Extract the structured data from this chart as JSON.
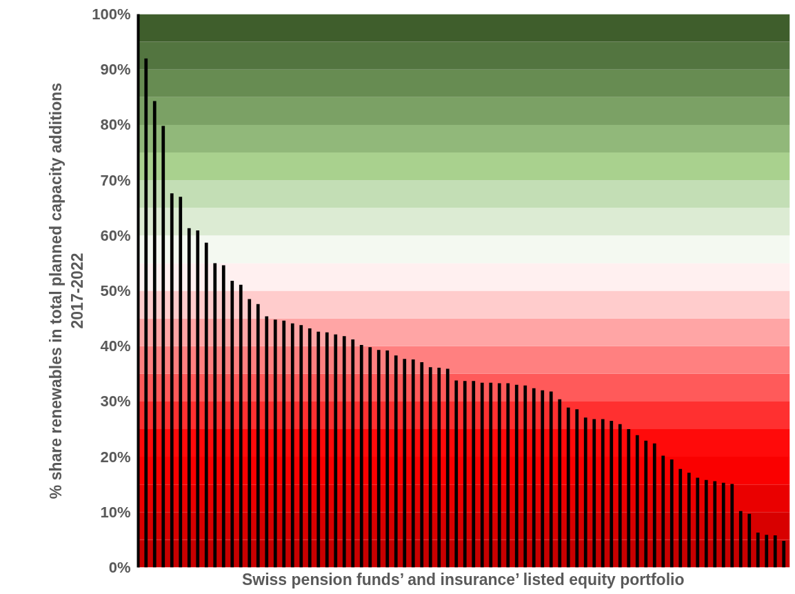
{
  "chart_data": {
    "type": "bar",
    "xlabel": "Swiss pension funds’ and insurance’ listed equity portfolio",
    "ylabel": "% share renewables in total planned capacity additions\n2017-2022",
    "categories": [
      null,
      null,
      null,
      null,
      null,
      null,
      null,
      null,
      null,
      null,
      null,
      null,
      null,
      null,
      null,
      null,
      null,
      null,
      null,
      null,
      null,
      null,
      null,
      null,
      null,
      null,
      null,
      null,
      null,
      null,
      null,
      null,
      null,
      null,
      null,
      null,
      null,
      null,
      null,
      null,
      null,
      null,
      null,
      null,
      null,
      null,
      null,
      null,
      null,
      null,
      null,
      null,
      null,
      null,
      null,
      null,
      null,
      null,
      null,
      null,
      null,
      null,
      null,
      null,
      null,
      null,
      null,
      null,
      null,
      null,
      null,
      null,
      null,
      null,
      null
    ],
    "values": [
      92.0,
      84.3,
      79.8,
      67.6,
      67.0,
      61.3,
      60.9,
      58.7,
      55.0,
      54.6,
      51.8,
      51.1,
      48.5,
      47.6,
      45.4,
      44.8,
      44.6,
      44.1,
      43.8,
      43.2,
      42.6,
      42.5,
      42.1,
      41.8,
      41.2,
      40.2,
      39.8,
      39.3,
      39.2,
      38.3,
      37.7,
      37.6,
      37.1,
      36.2,
      36.1,
      35.9,
      33.8,
      33.7,
      33.7,
      33.4,
      33.4,
      33.3,
      33.3,
      33.0,
      32.9,
      32.4,
      32.0,
      31.8,
      30.4,
      28.9,
      28.6,
      27.1,
      26.8,
      26.8,
      26.5,
      25.9,
      25.0,
      23.9,
      22.9,
      22.4,
      20.2,
      19.5,
      17.8,
      17.1,
      16.2,
      15.8,
      15.6,
      15.3,
      15.1,
      10.2,
      9.7,
      6.3,
      5.9,
      5.8,
      4.8
    ],
    "color": "#000000",
    "ylim": [
      0,
      100
    ],
    "yticks": [
      {
        "value": 0,
        "label": "0%"
      },
      {
        "value": 10,
        "label": "10%"
      },
      {
        "value": 20,
        "label": "20%"
      },
      {
        "value": 30,
        "label": "30%"
      },
      {
        "value": 40,
        "label": "40%"
      },
      {
        "value": 50,
        "label": "50%"
      },
      {
        "value": 60,
        "label": "60%"
      },
      {
        "value": 70,
        "label": "70%"
      },
      {
        "value": 80,
        "label": "80%"
      },
      {
        "value": 90,
        "label": "90%"
      },
      {
        "value": 100,
        "label": "100%"
      }
    ],
    "grid": false,
    "bands": [
      {
        "axis": "y",
        "from": 0,
        "to": 5,
        "color": "#c80000"
      },
      {
        "axis": "y",
        "from": 5,
        "to": 10,
        "color": "#d80000"
      },
      {
        "axis": "y",
        "from": 10,
        "to": 15,
        "color": "#ea0000"
      },
      {
        "axis": "y",
        "from": 15,
        "to": 20,
        "color": "#fa0000"
      },
      {
        "axis": "y",
        "from": 20,
        "to": 25,
        "color": "#ff0a0a"
      },
      {
        "axis": "y",
        "from": 25,
        "to": 30,
        "color": "#ff3030"
      },
      {
        "axis": "y",
        "from": 30,
        "to": 35,
        "color": "#ff5a5a"
      },
      {
        "axis": "y",
        "from": 35,
        "to": 40,
        "color": "#ff8080"
      },
      {
        "axis": "y",
        "from": 40,
        "to": 45,
        "color": "#ffa5a5"
      },
      {
        "axis": "y",
        "from": 45,
        "to": 50,
        "color": "#ffcccc"
      },
      {
        "axis": "y",
        "from": 50,
        "to": 55,
        "color": "#fff0f0"
      },
      {
        "axis": "y",
        "from": 55,
        "to": 60,
        "color": "#f4f9f1"
      },
      {
        "axis": "y",
        "from": 60,
        "to": 65,
        "color": "#dcebd3"
      },
      {
        "axis": "y",
        "from": 65,
        "to": 70,
        "color": "#c3deb5"
      },
      {
        "axis": "y",
        "from": 70,
        "to": 75,
        "color": "#a9d18e"
      },
      {
        "axis": "y",
        "from": 75,
        "to": 80,
        "color": "#91b87a"
      },
      {
        "axis": "y",
        "from": 80,
        "to": 85,
        "color": "#7ba165"
      },
      {
        "axis": "y",
        "from": 85,
        "to": 90,
        "color": "#678c52"
      },
      {
        "axis": "y",
        "from": 90,
        "to": 95,
        "color": "#537540"
      },
      {
        "axis": "y",
        "from": 95,
        "to": 100,
        "color": "#3f5e2c"
      }
    ]
  }
}
